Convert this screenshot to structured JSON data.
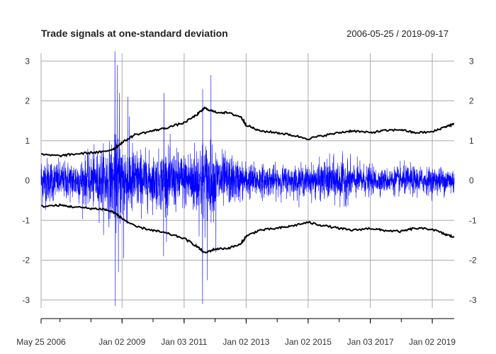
{
  "chart_data": {
    "type": "line",
    "title": "Trade signals at one-standard deviation",
    "date_range": "2006-05-25 / 2019-09-17",
    "x_start": "2006-05-25",
    "x_end": "2019-09-17",
    "x_tick_labels": [
      {
        "date": "2006-05-25",
        "label": "May 25 2006"
      },
      {
        "date": "2009-01-02",
        "label": "Jan 02 2009"
      },
      {
        "date": "2011-01-03",
        "label": "Jan 03 2011"
      },
      {
        "date": "2013-01-02",
        "label": "Jan 02 2013"
      },
      {
        "date": "2015-01-02",
        "label": "Jan 02 2015"
      },
      {
        "date": "2017-01-03",
        "label": "Jan 03 2017"
      },
      {
        "date": "2019-01-02",
        "label": "Jan 02 2019"
      }
    ],
    "ylim": [
      -3.2,
      3.2
    ],
    "y_ticks": [
      -3,
      -2,
      -1,
      0,
      1,
      2,
      3
    ],
    "grid": true,
    "series": [
      {
        "color": "#0000ff",
        "style": "daily-returns",
        "volatility_profile": [
          [
            "2006-05-25",
            0.55
          ],
          [
            "2007-01-01",
            0.4
          ],
          [
            "2007-06-01",
            0.45
          ],
          [
            "2008-01-01",
            0.55
          ],
          [
            "2008-09-01",
            0.85
          ],
          [
            "2008-12-01",
            1.0
          ],
          [
            "2009-03-01",
            0.95
          ],
          [
            "2009-07-01",
            0.7
          ],
          [
            "2010-01-01",
            0.55
          ],
          [
            "2010-06-01",
            0.7
          ],
          [
            "2011-01-01",
            0.6
          ],
          [
            "2011-08-01",
            0.95
          ],
          [
            "2012-01-01",
            0.7
          ],
          [
            "2012-06-01",
            0.55
          ],
          [
            "2013-01-01",
            0.4
          ],
          [
            "2014-01-01",
            0.32
          ],
          [
            "2015-01-01",
            0.33
          ],
          [
            "2015-09-01",
            0.45
          ],
          [
            "2016-02-01",
            0.5
          ],
          [
            "2016-07-01",
            0.38
          ],
          [
            "2017-06-01",
            0.25
          ],
          [
            "2018-02-01",
            0.33
          ],
          [
            "2019-01-01",
            0.28
          ],
          [
            "2019-09-17",
            0.32
          ]
        ],
        "spikes": [
          [
            "2008-10-10",
            3.25
          ],
          [
            "2008-10-15",
            -3.15
          ],
          [
            "2008-11-05",
            2.9
          ],
          [
            "2008-11-20",
            -2.3
          ],
          [
            "2008-12-01",
            2.2
          ],
          [
            "2009-01-20",
            -1.95
          ],
          [
            "2009-03-10",
            2.1
          ],
          [
            "2010-05-06",
            -1.9
          ],
          [
            "2010-05-10",
            2.2
          ],
          [
            "2011-08-08",
            -3.1
          ],
          [
            "2011-08-09",
            2.3
          ],
          [
            "2011-11-15",
            2.65
          ],
          [
            "2011-10-04",
            -2.5
          ],
          [
            "2012-01-12",
            -1.8
          ]
        ]
      },
      {
        "color": "#000000",
        "style": "upper-band",
        "points": [
          [
            "2006-05-25",
            0.65
          ],
          [
            "2007-01-01",
            0.62
          ],
          [
            "2007-06-01",
            0.66
          ],
          [
            "2008-01-01",
            0.7
          ],
          [
            "2008-06-01",
            0.72
          ],
          [
            "2008-10-01",
            0.8
          ],
          [
            "2009-01-01",
            0.95
          ],
          [
            "2009-06-01",
            1.15
          ],
          [
            "2010-01-01",
            1.25
          ],
          [
            "2010-06-01",
            1.32
          ],
          [
            "2011-01-01",
            1.45
          ],
          [
            "2011-06-01",
            1.65
          ],
          [
            "2011-09-01",
            1.82
          ],
          [
            "2012-01-01",
            1.72
          ],
          [
            "2012-06-01",
            1.7
          ],
          [
            "2012-11-01",
            1.6
          ],
          [
            "2013-01-01",
            1.4
          ],
          [
            "2013-06-01",
            1.25
          ],
          [
            "2014-01-01",
            1.2
          ],
          [
            "2014-06-01",
            1.15
          ],
          [
            "2015-01-01",
            1.05
          ],
          [
            "2015-06-01",
            1.12
          ],
          [
            "2016-01-01",
            1.2
          ],
          [
            "2016-06-01",
            1.25
          ],
          [
            "2017-01-01",
            1.2
          ],
          [
            "2017-06-01",
            1.25
          ],
          [
            "2018-01-01",
            1.28
          ],
          [
            "2018-06-01",
            1.2
          ],
          [
            "2019-01-01",
            1.22
          ],
          [
            "2019-06-01",
            1.35
          ],
          [
            "2019-09-17",
            1.42
          ]
        ]
      },
      {
        "color": "#000000",
        "style": "lower-band",
        "points": [
          [
            "2006-05-25",
            -0.65
          ],
          [
            "2007-01-01",
            -0.62
          ],
          [
            "2007-06-01",
            -0.66
          ],
          [
            "2008-01-01",
            -0.7
          ],
          [
            "2008-06-01",
            -0.72
          ],
          [
            "2008-10-01",
            -0.8
          ],
          [
            "2009-01-01",
            -0.95
          ],
          [
            "2009-06-01",
            -1.15
          ],
          [
            "2010-01-01",
            -1.25
          ],
          [
            "2010-06-01",
            -1.32
          ],
          [
            "2011-01-01",
            -1.45
          ],
          [
            "2011-06-01",
            -1.65
          ],
          [
            "2011-09-01",
            -1.82
          ],
          [
            "2012-01-01",
            -1.72
          ],
          [
            "2012-06-01",
            -1.7
          ],
          [
            "2012-11-01",
            -1.6
          ],
          [
            "2013-01-01",
            -1.4
          ],
          [
            "2013-06-01",
            -1.25
          ],
          [
            "2014-01-01",
            -1.2
          ],
          [
            "2014-06-01",
            -1.15
          ],
          [
            "2015-01-01",
            -1.05
          ],
          [
            "2015-06-01",
            -1.12
          ],
          [
            "2016-01-01",
            -1.2
          ],
          [
            "2016-06-01",
            -1.25
          ],
          [
            "2017-01-01",
            -1.2
          ],
          [
            "2017-06-01",
            -1.25
          ],
          [
            "2018-01-01",
            -1.28
          ],
          [
            "2018-06-01",
            -1.2
          ],
          [
            "2019-01-01",
            -1.22
          ],
          [
            "2019-06-01",
            -1.35
          ],
          [
            "2019-09-17",
            -1.42
          ]
        ]
      }
    ]
  }
}
